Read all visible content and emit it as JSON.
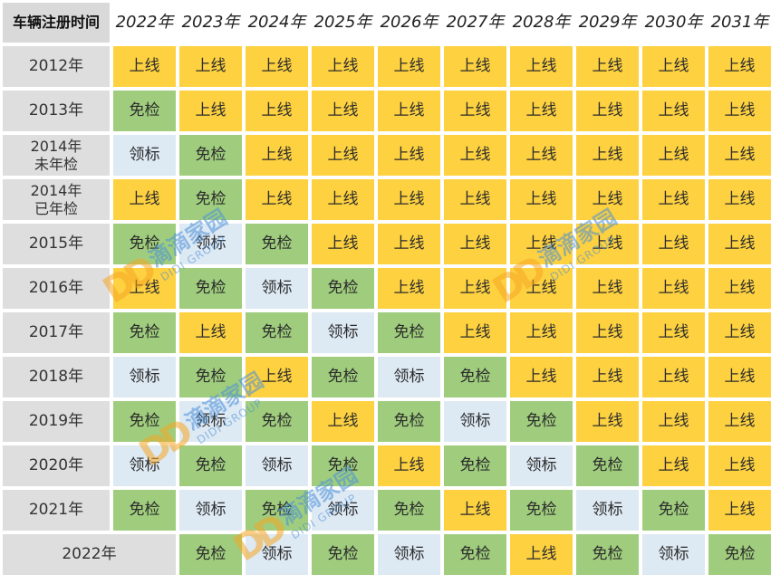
{
  "table": {
    "corner_header": "车辆注册时间",
    "years": [
      "2022年",
      "2023年",
      "2024年",
      "2025年",
      "2026年",
      "2027年",
      "2028年",
      "2029年",
      "2030年",
      "2031年"
    ],
    "rows": [
      {
        "label": "2012年",
        "cells": [
          "上线",
          "上线",
          "上线",
          "上线",
          "上线",
          "上线",
          "上线",
          "上线",
          "上线",
          "上线"
        ]
      },
      {
        "label": "2013年",
        "cells": [
          "免检",
          "上线",
          "上线",
          "上线",
          "上线",
          "上线",
          "上线",
          "上线",
          "上线",
          "上线"
        ]
      },
      {
        "label": "2014年\n未年检",
        "cells": [
          "领标",
          "免检",
          "上线",
          "上线",
          "上线",
          "上线",
          "上线",
          "上线",
          "上线",
          "上线"
        ]
      },
      {
        "label": "2014年\n已年检",
        "cells": [
          "上线",
          "免检",
          "上线",
          "上线",
          "上线",
          "上线",
          "上线",
          "上线",
          "上线",
          "上线"
        ]
      },
      {
        "label": "2015年",
        "cells": [
          "免检",
          "领标",
          "免检",
          "上线",
          "上线",
          "上线",
          "上线",
          "上线",
          "上线",
          "上线"
        ]
      },
      {
        "label": "2016年",
        "cells": [
          "上线",
          "免检",
          "领标",
          "免检",
          "上线",
          "上线",
          "上线",
          "上线",
          "上线",
          "上线"
        ]
      },
      {
        "label": "2017年",
        "cells": [
          "免检",
          "上线",
          "免检",
          "领标",
          "免检",
          "上线",
          "上线",
          "上线",
          "上线",
          "上线"
        ]
      },
      {
        "label": "2018年",
        "cells": [
          "领标",
          "免检",
          "上线",
          "免检",
          "领标",
          "免检",
          "上线",
          "上线",
          "上线",
          "上线"
        ]
      },
      {
        "label": "2019年",
        "cells": [
          "免检",
          "领标",
          "免检",
          "上线",
          "免检",
          "领标",
          "免检",
          "上线",
          "上线",
          "上线"
        ]
      },
      {
        "label": "2020年",
        "cells": [
          "领标",
          "免检",
          "领标",
          "免检",
          "上线",
          "免检",
          "领标",
          "免检",
          "上线",
          "上线"
        ]
      },
      {
        "label": "2021年",
        "cells": [
          "免检",
          "领标",
          "免检",
          "领标",
          "免检",
          "上线",
          "免检",
          "领标",
          "免检",
          "上线"
        ]
      }
    ],
    "last_row": {
      "label": "2022年",
      "cells": [
        "免检",
        "领标",
        "免检",
        "领标",
        "免检",
        "上线",
        "免检",
        "领标",
        "免检"
      ]
    }
  },
  "status_colors": {
    "上线": "#fdd140",
    "免检": "#9fcd7d",
    "领标": "#dde9f3"
  },
  "watermark": {
    "logo": "DD",
    "cn": "滴滴家园",
    "en": "DIDI GROUP"
  }
}
